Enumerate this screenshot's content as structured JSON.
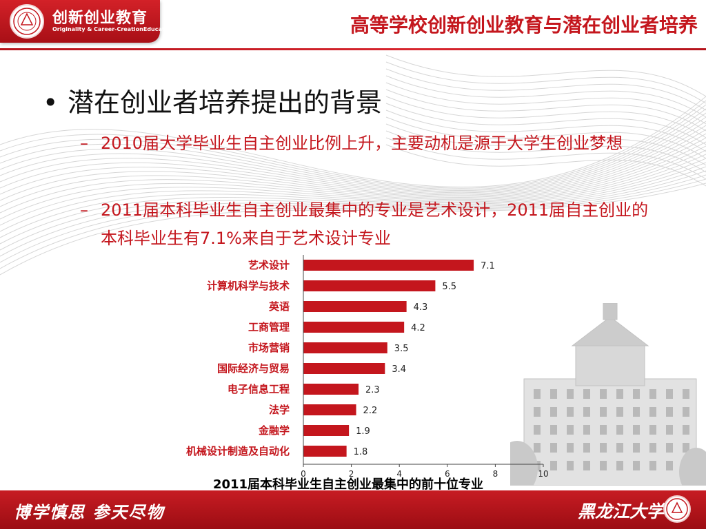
{
  "header": {
    "logo_title": "创新创业教育",
    "logo_subtitle": "Originality & Career-CreationEducation",
    "title": "高等学校创新创业教育与潜在创业者培养"
  },
  "content": {
    "bullet_symbol": "•",
    "heading": "潜在创业者培养提出的背景",
    "sub_items": [
      {
        "dash": "–",
        "text": "2010届大学毕业生自主创业比例上升，主要动机是源于大学生创业梦想"
      },
      {
        "dash": "–",
        "text": "2011届本科毕业生自主创业最集中的专业是艺术设计，2011届自主创业的本科毕业生有7.1%来自于艺术设计专业"
      }
    ]
  },
  "chart_data": {
    "type": "bar",
    "orientation": "horizontal",
    "title": "2011届本科毕业生自主创业最集中的前十位专业",
    "categories": [
      "艺术设计",
      "计算机科学与技术",
      "英语",
      "工商管理",
      "市场营销",
      "国际经济与贸易",
      "电子信息工程",
      "法学",
      "金融学",
      "机械设计制造及自动化"
    ],
    "values": [
      7.1,
      5.5,
      4.3,
      4.2,
      3.5,
      3.4,
      2.3,
      2.2,
      1.9,
      1.8
    ],
    "value_labels": [
      "7.1",
      "5.5",
      "4.3",
      "4.2",
      "3.5",
      "3.4",
      "2.3",
      "2.2",
      "1.9",
      "1.8"
    ],
    "xlim": [
      0,
      10
    ],
    "xticks": [
      "0",
      "2",
      "4",
      "6",
      "8",
      "10"
    ],
    "bar_color": "#c4161d",
    "grid": false,
    "legend": "none"
  },
  "footer": {
    "motto": "博学慎思  参天尽物",
    "university": "黑龙江大学"
  },
  "colors": {
    "brand_red": "#c4161d",
    "text_dark": "#111111"
  },
  "icons": {
    "header_logo": "university-seal-icon",
    "footer_logo": "university-seal-icon"
  }
}
